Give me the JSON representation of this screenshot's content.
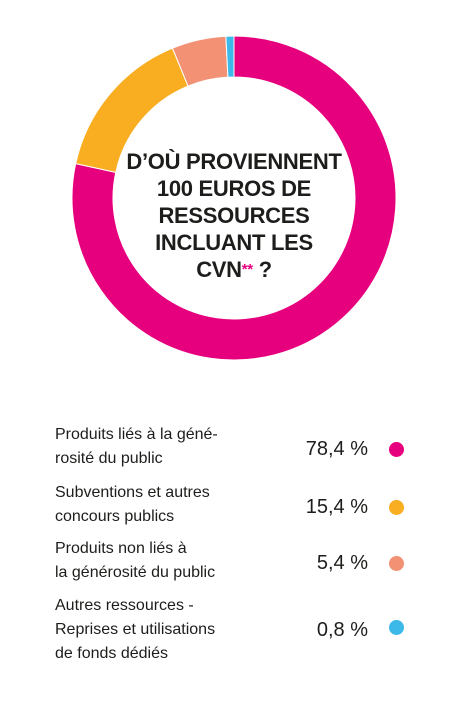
{
  "chart_data": {
    "type": "pie",
    "donut": true,
    "title_lines": [
      "D’OÙ PROVIENNENT",
      "100 EUROS DE",
      "RESSOURCES",
      "INCLUANT LES CVN"
    ],
    "title_stars": "**",
    "title_suffix": " ?",
    "slices": [
      {
        "label_lines": [
          "Produits liés à la géné-",
          "rosité du public"
        ],
        "value": 78.4,
        "value_label": "78,4 %",
        "color": "#e6007e"
      },
      {
        "label_lines": [
          "Subventions et autres",
          "concours publics"
        ],
        "value": 15.4,
        "value_label": "15,4 %",
        "color": "#f9ae22"
      },
      {
        "label_lines": [
          "Produits non liés à",
          "la générosité du public"
        ],
        "value": 5.4,
        "value_label": "5,4 %",
        "color": "#f29174"
      },
      {
        "label_lines": [
          "Autres ressources -",
          "Reprises et utilisations",
          "de fonds dédiés"
        ],
        "value": 0.8,
        "value_label": "0,8 %",
        "color": "#3cb9e9"
      }
    ]
  }
}
